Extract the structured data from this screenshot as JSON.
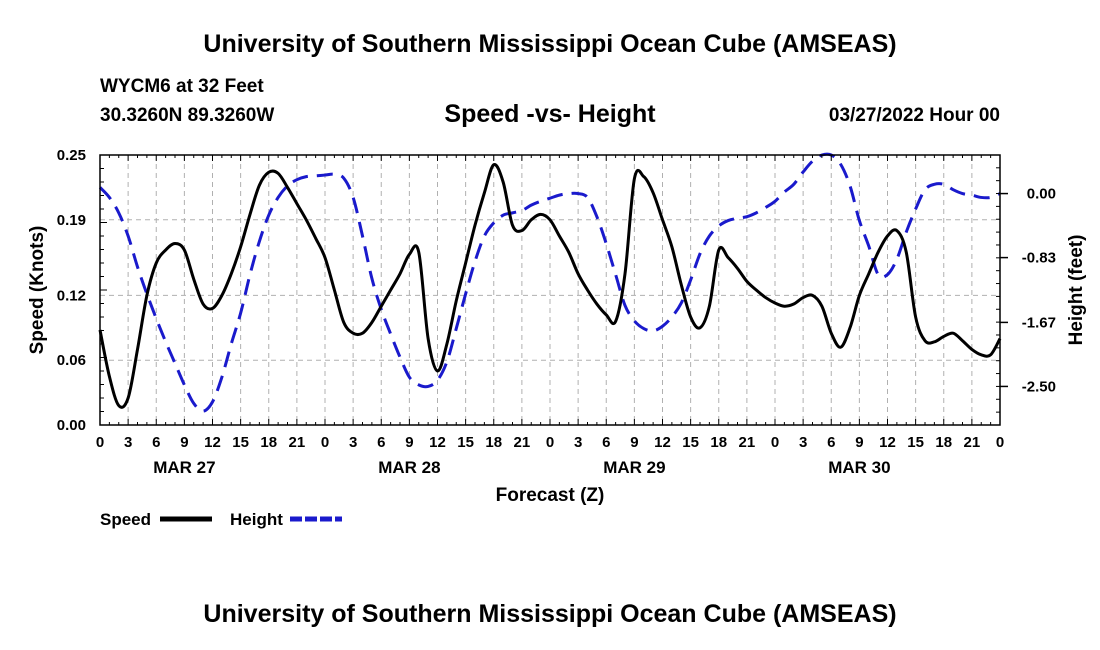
{
  "header": {
    "title": "University of Southern Mississippi Ocean Cube (AMSEAS)",
    "station": "WYCM6 at 32 Feet",
    "coords": "30.3260N  89.3260W",
    "chart_title": "Speed -vs- Height",
    "datetime": "03/27/2022 Hour 00"
  },
  "footer": {
    "title": "University of Southern Mississippi Ocean Cube (AMSEAS)"
  },
  "colors": {
    "speed": "#000000",
    "height": "#1a1acc",
    "grid": "#b0b0b0"
  },
  "chart_data": {
    "type": "line",
    "title": "Speed -vs- Height",
    "xlabel": "Forecast (Z)",
    "ylabel_left": "Speed (Knots)",
    "ylabel_right": "Height (feet)",
    "x_range": [
      0,
      96
    ],
    "x_tick_labels": [
      "0",
      "3",
      "6",
      "9",
      "12",
      "15",
      "18",
      "21",
      "0",
      "3",
      "6",
      "9",
      "12",
      "15",
      "18",
      "21",
      "0",
      "3",
      "6",
      "9",
      "12",
      "15",
      "18",
      "21",
      "0",
      "3",
      "6",
      "9",
      "12",
      "15",
      "18",
      "21",
      "0"
    ],
    "date_labels": [
      {
        "label": "MAR 27",
        "x": 9
      },
      {
        "label": "MAR 28",
        "x": 33
      },
      {
        "label": "MAR 29",
        "x": 57
      },
      {
        "label": "MAR 30",
        "x": 81
      }
    ],
    "left_axis": {
      "min": 0.0,
      "max": 0.25,
      "ticks": [
        "0.00",
        "0.06",
        "0.12",
        "0.19",
        "0.25"
      ]
    },
    "right_axis": {
      "min": -3.0,
      "max": 0.5,
      "ticks": [
        "0.00",
        "-0.83",
        "-1.67",
        "-2.50"
      ]
    },
    "legend": [
      {
        "name": "Speed",
        "style": "solid"
      },
      {
        "name": "Height",
        "style": "dashed"
      }
    ],
    "series": [
      {
        "name": "Speed",
        "axis": "left",
        "points": [
          [
            0,
            0.088
          ],
          [
            1,
            0.045
          ],
          [
            2,
            0.018
          ],
          [
            3,
            0.025
          ],
          [
            4,
            0.07
          ],
          [
            5,
            0.12
          ],
          [
            6,
            0.15
          ],
          [
            7,
            0.162
          ],
          [
            8,
            0.168
          ],
          [
            9,
            0.162
          ],
          [
            10,
            0.135
          ],
          [
            11,
            0.112
          ],
          [
            12,
            0.108
          ],
          [
            13,
            0.12
          ],
          [
            14,
            0.14
          ],
          [
            15,
            0.165
          ],
          [
            16,
            0.195
          ],
          [
            17,
            0.222
          ],
          [
            18,
            0.234
          ],
          [
            19,
            0.233
          ],
          [
            20,
            0.22
          ],
          [
            21,
            0.205
          ],
          [
            22,
            0.19
          ],
          [
            23,
            0.173
          ],
          [
            24,
            0.155
          ],
          [
            25,
            0.125
          ],
          [
            26,
            0.095
          ],
          [
            27,
            0.085
          ],
          [
            28,
            0.085
          ],
          [
            29,
            0.095
          ],
          [
            30,
            0.11
          ],
          [
            31,
            0.125
          ],
          [
            32,
            0.14
          ],
          [
            33,
            0.158
          ],
          [
            34,
            0.16
          ],
          [
            35,
            0.08
          ],
          [
            36,
            0.05
          ],
          [
            37,
            0.075
          ],
          [
            38,
            0.115
          ],
          [
            39,
            0.15
          ],
          [
            40,
            0.185
          ],
          [
            41,
            0.215
          ],
          [
            42,
            0.241
          ],
          [
            43,
            0.225
          ],
          [
            44,
            0.185
          ],
          [
            45,
            0.18
          ],
          [
            46,
            0.19
          ],
          [
            47,
            0.195
          ],
          [
            48,
            0.19
          ],
          [
            49,
            0.175
          ],
          [
            50,
            0.16
          ],
          [
            51,
            0.14
          ],
          [
            52,
            0.125
          ],
          [
            53,
            0.112
          ],
          [
            54,
            0.102
          ],
          [
            55,
            0.096
          ],
          [
            56,
            0.14
          ],
          [
            57,
            0.228
          ],
          [
            58,
            0.23
          ],
          [
            59,
            0.215
          ],
          [
            60,
            0.19
          ],
          [
            61,
            0.165
          ],
          [
            62,
            0.13
          ],
          [
            63,
            0.1
          ],
          [
            64,
            0.09
          ],
          [
            65,
            0.11
          ],
          [
            66,
            0.162
          ],
          [
            67,
            0.155
          ],
          [
            68,
            0.145
          ],
          [
            69,
            0.133
          ],
          [
            70,
            0.125
          ],
          [
            71,
            0.118
          ],
          [
            72,
            0.113
          ],
          [
            73,
            0.11
          ],
          [
            74,
            0.112
          ],
          [
            75,
            0.118
          ],
          [
            76,
            0.12
          ],
          [
            77,
            0.11
          ],
          [
            78,
            0.085
          ],
          [
            79,
            0.072
          ],
          [
            80,
            0.09
          ],
          [
            81,
            0.12
          ],
          [
            82,
            0.14
          ],
          [
            83,
            0.16
          ],
          [
            84,
            0.175
          ],
          [
            85,
            0.18
          ],
          [
            86,
            0.16
          ],
          [
            87,
            0.1
          ],
          [
            88,
            0.078
          ],
          [
            89,
            0.077
          ],
          [
            90,
            0.082
          ],
          [
            91,
            0.085
          ],
          [
            92,
            0.078
          ],
          [
            93,
            0.07
          ],
          [
            94,
            0.065
          ],
          [
            95,
            0.065
          ],
          [
            96,
            0.08
          ]
        ]
      },
      {
        "name": "Height",
        "axis": "right",
        "points": [
          [
            0,
            0.08
          ],
          [
            1,
            -0.05
          ],
          [
            2,
            -0.25
          ],
          [
            3,
            -0.55
          ],
          [
            4,
            -0.95
          ],
          [
            5,
            -1.3
          ],
          [
            6,
            -1.62
          ],
          [
            7,
            -1.92
          ],
          [
            8,
            -2.2
          ],
          [
            9,
            -2.48
          ],
          [
            10,
            -2.72
          ],
          [
            11,
            -2.82
          ],
          [
            12,
            -2.7
          ],
          [
            13,
            -2.38
          ],
          [
            14,
            -1.95
          ],
          [
            15,
            -1.55
          ],
          [
            16,
            -1.05
          ],
          [
            17,
            -0.62
          ],
          [
            18,
            -0.28
          ],
          [
            19,
            -0.05
          ],
          [
            20,
            0.1
          ],
          [
            21,
            0.18
          ],
          [
            22,
            0.22
          ],
          [
            23,
            0.23
          ],
          [
            24,
            0.24
          ],
          [
            25,
            0.25
          ],
          [
            26,
            0.2
          ],
          [
            27,
            -0.05
          ],
          [
            28,
            -0.55
          ],
          [
            29,
            -1.1
          ],
          [
            30,
            -1.5
          ],
          [
            31,
            -1.82
          ],
          [
            32,
            -2.12
          ],
          [
            33,
            -2.38
          ],
          [
            34,
            -2.48
          ],
          [
            35,
            -2.5
          ],
          [
            36,
            -2.42
          ],
          [
            37,
            -2.18
          ],
          [
            38,
            -1.75
          ],
          [
            39,
            -1.3
          ],
          [
            40,
            -0.88
          ],
          [
            41,
            -0.55
          ],
          [
            42,
            -0.38
          ],
          [
            43,
            -0.28
          ],
          [
            44,
            -0.25
          ],
          [
            45,
            -0.22
          ],
          [
            46,
            -0.15
          ],
          [
            47,
            -0.1
          ],
          [
            48,
            -0.06
          ],
          [
            49,
            -0.02
          ],
          [
            50,
            0.0
          ],
          [
            51,
            0.0
          ],
          [
            52,
            -0.05
          ],
          [
            53,
            -0.3
          ],
          [
            54,
            -0.65
          ],
          [
            55,
            -1.05
          ],
          [
            56,
            -1.45
          ],
          [
            57,
            -1.65
          ],
          [
            58,
            -1.75
          ],
          [
            59,
            -1.78
          ],
          [
            60,
            -1.72
          ],
          [
            61,
            -1.6
          ],
          [
            62,
            -1.42
          ],
          [
            63,
            -1.12
          ],
          [
            64,
            -0.78
          ],
          [
            65,
            -0.55
          ],
          [
            66,
            -0.42
          ],
          [
            67,
            -0.35
          ],
          [
            68,
            -0.32
          ],
          [
            69,
            -0.3
          ],
          [
            70,
            -0.25
          ],
          [
            71,
            -0.18
          ],
          [
            72,
            -0.1
          ],
          [
            73,
            0.02
          ],
          [
            74,
            0.12
          ],
          [
            75,
            0.28
          ],
          [
            76,
            0.42
          ],
          [
            77,
            0.5
          ],
          [
            78,
            0.5
          ],
          [
            79,
            0.38
          ],
          [
            80,
            0.1
          ],
          [
            81,
            -0.35
          ],
          [
            82,
            -0.68
          ],
          [
            83,
            -1.05
          ],
          [
            84,
            -1.05
          ],
          [
            85,
            -0.85
          ],
          [
            86,
            -0.5
          ],
          [
            87,
            -0.2
          ],
          [
            88,
            0.05
          ],
          [
            89,
            0.12
          ],
          [
            90,
            0.12
          ],
          [
            91,
            0.05
          ],
          [
            92,
            0.0
          ],
          [
            93,
            -0.02
          ],
          [
            94,
            -0.05
          ],
          [
            95,
            -0.05
          ],
          [
            96,
            0.0
          ]
        ]
      }
    ]
  }
}
